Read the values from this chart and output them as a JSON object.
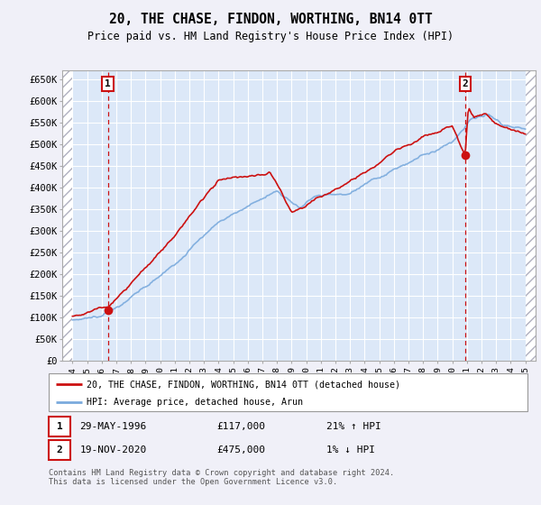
{
  "title": "20, THE CHASE, FINDON, WORTHING, BN14 0TT",
  "subtitle": "Price paid vs. HM Land Registry's House Price Index (HPI)",
  "ylabel_ticks": [
    "£0",
    "£50K",
    "£100K",
    "£150K",
    "£200K",
    "£250K",
    "£300K",
    "£350K",
    "£400K",
    "£450K",
    "£500K",
    "£550K",
    "£600K",
    "£650K"
  ],
  "ytick_values": [
    0,
    50000,
    100000,
    150000,
    200000,
    250000,
    300000,
    350000,
    400000,
    450000,
    500000,
    550000,
    600000,
    650000
  ],
  "ylim": [
    0,
    670000
  ],
  "x_start_year": 1994,
  "x_end_year": 2025,
  "xtick_years": [
    1994,
    1995,
    1996,
    1997,
    1998,
    1999,
    2000,
    2001,
    2002,
    2003,
    2004,
    2005,
    2006,
    2007,
    2008,
    2009,
    2010,
    2011,
    2012,
    2013,
    2014,
    2015,
    2016,
    2017,
    2018,
    2019,
    2020,
    2021,
    2022,
    2023,
    2024,
    2025
  ],
  "hpi_color": "#7aaadd",
  "price_color": "#cc1111",
  "sale1_x": 1996.42,
  "sale1_y": 117000,
  "sale2_x": 2020.88,
  "sale2_y": 475000,
  "legend_label1": "20, THE CHASE, FINDON, WORTHING, BN14 0TT (detached house)",
  "legend_label2": "HPI: Average price, detached house, Arun",
  "note1_date": "29-MAY-1996",
  "note1_price": "£117,000",
  "note1_hpi": "21% ↑ HPI",
  "note2_date": "19-NOV-2020",
  "note2_price": "£475,000",
  "note2_hpi": "1% ↓ HPI",
  "footer": "Contains HM Land Registry data © Crown copyright and database right 2024.\nThis data is licensed under the Open Government Licence v3.0.",
  "bg_color": "#f0f0f8",
  "plot_bg": "#dce8f8"
}
